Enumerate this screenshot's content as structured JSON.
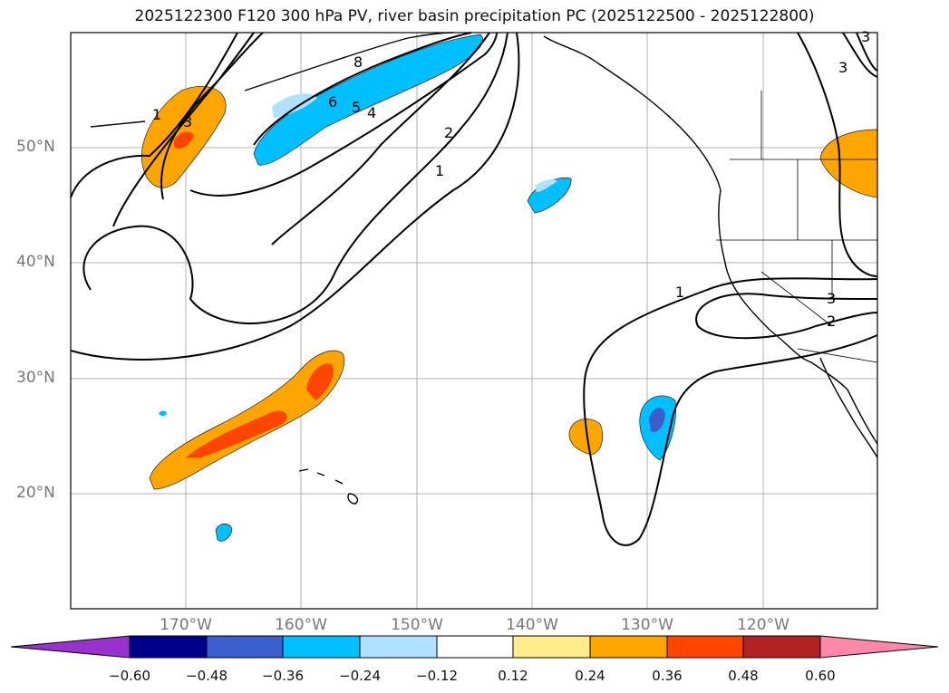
{
  "title": "2025122300 F120 300 hPa PV, river basin precipitation PC (2025122500 - 2025122800)",
  "lat_labels": [
    "50°N",
    "40°N",
    "30°N",
    "20°N"
  ],
  "lon_labels": [
    "170°W",
    "160°W",
    "150°W",
    "140°W",
    "130°W",
    "120°W"
  ],
  "colorbar": {
    "ticks": [
      "−0.60",
      "−0.48",
      "−0.36",
      "−0.24",
      "−0.12",
      "0.12",
      "0.24",
      "0.36",
      "0.48",
      "0.60"
    ],
    "colors": [
      "#9932cc",
      "#00008b",
      "#3a5fcd",
      "#00bfff",
      "#b0e0ff",
      "#ffffff",
      "#ffec8b",
      "#ffa500",
      "#ff4500",
      "#b22222",
      "#ff88aa"
    ]
  },
  "contour_labels": [
    "1",
    "3",
    "8",
    "6",
    "5",
    "4",
    "2",
    "1",
    "1",
    "2",
    "3",
    "3",
    "3"
  ]
}
